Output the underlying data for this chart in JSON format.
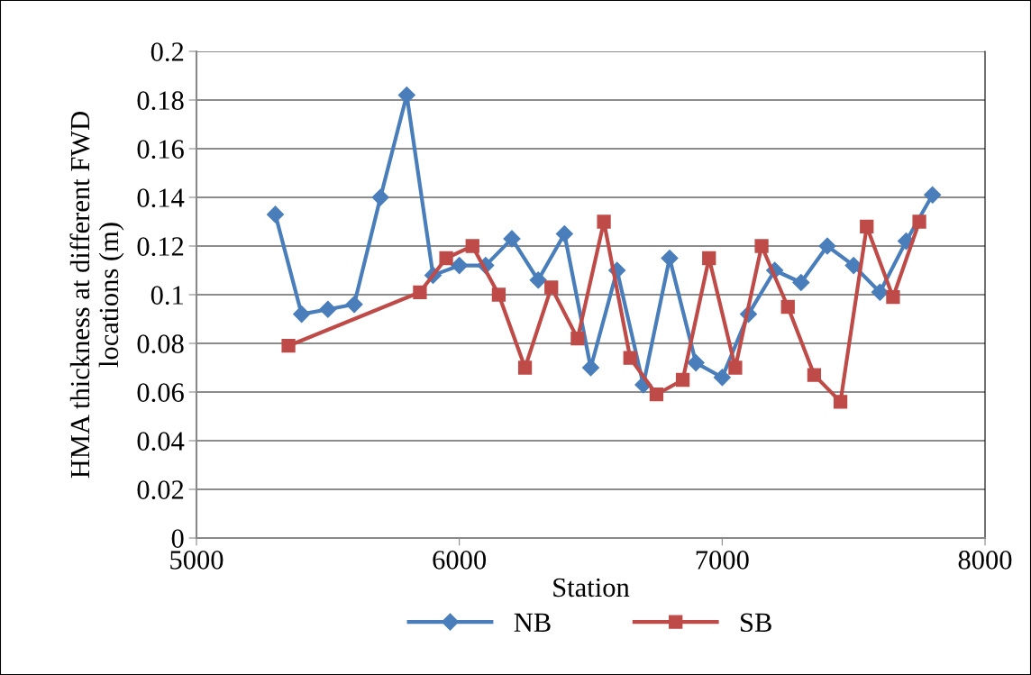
{
  "chart_data": {
    "type": "line",
    "xlabel": "Station",
    "ylabel": "HMA thickness at different FWD\nlocations (m)",
    "xlim": [
      5000,
      8000
    ],
    "xticks": [
      5000,
      6000,
      7000,
      8000
    ],
    "ylim": [
      0,
      0.2
    ],
    "yticks": [
      0,
      0.02,
      0.04,
      0.06,
      0.08,
      0.1,
      0.12,
      0.14,
      0.16,
      0.18,
      0.2
    ],
    "grid": "y",
    "legend": "bottom",
    "line_style": "solid",
    "series": [
      {
        "name": "NB",
        "color": "#4a7ebb",
        "marker": "diamond",
        "x": [
          5300,
          5400,
          5500,
          5600,
          5700,
          5800,
          5900,
          6000,
          6100,
          6200,
          6300,
          6400,
          6500,
          6600,
          6700,
          6800,
          6900,
          7000,
          7100,
          7200,
          7300,
          7400,
          7500,
          7600,
          7700,
          7800
        ],
        "values": [
          0.133,
          0.092,
          0.094,
          0.096,
          0.14,
          0.182,
          0.108,
          0.112,
          0.112,
          0.123,
          0.106,
          0.125,
          0.07,
          0.11,
          0.063,
          0.115,
          0.072,
          0.066,
          0.092,
          0.11,
          0.105,
          0.12,
          0.112,
          0.101,
          0.122,
          0.141
        ]
      },
      {
        "name": "SB",
        "color": "#be4b48",
        "marker": "square",
        "x": [
          5350,
          5850,
          5950,
          6050,
          6150,
          6250,
          6350,
          6450,
          6550,
          6650,
          6750,
          6850,
          6950,
          7050,
          7150,
          7250,
          7350,
          7450,
          7550,
          7650,
          7750
        ],
        "values": [
          0.079,
          0.101,
          0.115,
          0.12,
          0.1,
          0.07,
          0.103,
          0.082,
          0.13,
          0.074,
          0.059,
          0.065,
          0.115,
          0.07,
          0.12,
          0.095,
          0.067,
          0.056,
          0.128,
          0.099,
          0.13
        ]
      }
    ]
  }
}
